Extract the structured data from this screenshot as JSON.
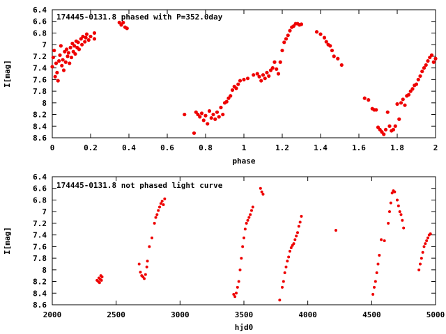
{
  "chart_data": [
    {
      "type": "scatter",
      "title": "174445-0131.8 phased with P=352.0day",
      "xlabel": "phase",
      "ylabel": "I[mag]",
      "xlim": [
        0,
        2
      ],
      "ylim": [
        8.6,
        6.4
      ],
      "y_inverted": true,
      "xticks": [
        0,
        0.2,
        0.4,
        0.6,
        0.8,
        1,
        1.2,
        1.4,
        1.6,
        1.8,
        2
      ],
      "yticks": [
        6.4,
        6.6,
        6.8,
        7,
        7.2,
        7.4,
        7.6,
        7.8,
        8,
        8.2,
        8.4,
        8.6
      ],
      "grid": false,
      "marker_color": "#ee0000",
      "series": [
        {
          "points": [
            [
              0.0,
              7.38
            ],
            [
              0.005,
              7.22
            ],
            [
              0.01,
              7.1
            ],
            [
              0.015,
              7.55
            ],
            [
              0.02,
              7.32
            ],
            [
              0.025,
              7.48
            ],
            [
              0.03,
              7.62
            ],
            [
              0.035,
              7.28
            ],
            [
              0.04,
              7.18
            ],
            [
              0.045,
              7.02
            ],
            [
              0.05,
              7.36
            ],
            [
              0.055,
              7.26
            ],
            [
              0.06,
              7.44
            ],
            [
              0.065,
              7.12
            ],
            [
              0.07,
              7.3
            ],
            [
              0.075,
              7.08
            ],
            [
              0.08,
              7.2
            ],
            [
              0.085,
              7.14
            ],
            [
              0.09,
              7.32
            ],
            [
              0.095,
              7.05
            ],
            [
              0.1,
              7.22
            ],
            [
              0.105,
              6.98
            ],
            [
              0.11,
              7.12
            ],
            [
              0.115,
              7.02
            ],
            [
              0.12,
              7.16
            ],
            [
              0.125,
              6.94
            ],
            [
              0.13,
              7.05
            ],
            [
              0.135,
              6.96
            ],
            [
              0.14,
              7.08
            ],
            [
              0.15,
              6.9
            ],
            [
              0.155,
              7.0
            ],
            [
              0.16,
              6.86
            ],
            [
              0.17,
              6.95
            ],
            [
              0.175,
              6.88
            ],
            [
              0.18,
              6.82
            ],
            [
              0.19,
              6.92
            ],
            [
              0.2,
              6.86
            ],
            [
              0.22,
              6.8
            ],
            [
              0.22,
              6.9
            ],
            [
              0.35,
              6.62
            ],
            [
              0.36,
              6.66
            ],
            [
              0.37,
              6.62
            ],
            [
              0.38,
              6.7
            ],
            [
              0.39,
              6.72
            ],
            [
              0.69,
              8.2
            ],
            [
              0.74,
              8.52
            ],
            [
              0.75,
              8.16
            ],
            [
              0.76,
              8.2
            ],
            [
              0.77,
              8.24
            ],
            [
              0.78,
              8.18
            ],
            [
              0.79,
              8.3
            ],
            [
              0.8,
              8.22
            ],
            [
              0.81,
              8.36
            ],
            [
              0.82,
              8.14
            ],
            [
              0.83,
              8.26
            ],
            [
              0.84,
              8.2
            ],
            [
              0.85,
              8.28
            ],
            [
              0.86,
              8.16
            ],
            [
              0.87,
              8.24
            ],
            [
              0.88,
              8.08
            ],
            [
              0.89,
              8.2
            ],
            [
              0.9,
              8.0
            ],
            [
              0.91,
              7.98
            ],
            [
              0.92,
              7.92
            ],
            [
              0.93,
              7.88
            ],
            [
              0.94,
              7.78
            ],
            [
              0.95,
              7.72
            ],
            [
              0.96,
              7.75
            ],
            [
              0.97,
              7.68
            ],
            [
              0.98,
              7.62
            ],
            [
              1.0,
              7.6
            ],
            [
              1.02,
              7.58
            ],
            [
              1.05,
              7.52
            ],
            [
              1.07,
              7.5
            ],
            [
              1.08,
              7.55
            ],
            [
              1.09,
              7.62
            ],
            [
              1.1,
              7.52
            ],
            [
              1.11,
              7.58
            ],
            [
              1.12,
              7.48
            ],
            [
              1.13,
              7.54
            ],
            [
              1.14,
              7.44
            ],
            [
              1.15,
              7.4
            ],
            [
              1.16,
              7.3
            ],
            [
              1.17,
              7.42
            ],
            [
              1.18,
              7.5
            ],
            [
              1.19,
              7.3
            ],
            [
              1.2,
              7.1
            ],
            [
              1.21,
              6.96
            ],
            [
              1.22,
              6.9
            ],
            [
              1.23,
              6.84
            ],
            [
              1.24,
              6.76
            ],
            [
              1.25,
              6.7
            ],
            [
              1.26,
              6.68
            ],
            [
              1.27,
              6.64
            ],
            [
              1.28,
              6.64
            ],
            [
              1.29,
              6.66
            ],
            [
              1.3,
              6.65
            ],
            [
              1.38,
              6.78
            ],
            [
              1.4,
              6.82
            ],
            [
              1.42,
              6.88
            ],
            [
              1.43,
              6.95
            ],
            [
              1.44,
              7.0
            ],
            [
              1.45,
              7.02
            ],
            [
              1.46,
              7.1
            ],
            [
              1.47,
              7.2
            ],
            [
              1.49,
              7.24
            ],
            [
              1.51,
              7.35
            ],
            [
              1.63,
              7.92
            ],
            [
              1.65,
              7.95
            ],
            [
              1.67,
              8.1
            ],
            [
              1.68,
              8.12
            ],
            [
              1.69,
              8.12
            ],
            [
              1.7,
              8.42
            ],
            [
              1.71,
              8.46
            ],
            [
              1.72,
              8.5
            ],
            [
              1.73,
              8.54
            ],
            [
              1.74,
              8.46
            ],
            [
              1.75,
              8.16
            ],
            [
              1.76,
              8.4
            ],
            [
              1.77,
              8.48
            ],
            [
              1.78,
              8.46
            ],
            [
              1.79,
              8.4
            ],
            [
              1.8,
              8.02
            ],
            [
              1.81,
              8.28
            ],
            [
              1.82,
              8.0
            ],
            [
              1.83,
              7.94
            ],
            [
              1.84,
              8.04
            ],
            [
              1.85,
              7.88
            ],
            [
              1.86,
              7.86
            ],
            [
              1.87,
              7.8
            ],
            [
              1.88,
              7.76
            ],
            [
              1.89,
              7.7
            ],
            [
              1.9,
              7.68
            ],
            [
              1.91,
              7.6
            ],
            [
              1.92,
              7.54
            ],
            [
              1.93,
              7.46
            ],
            [
              1.94,
              7.4
            ],
            [
              1.95,
              7.35
            ],
            [
              1.96,
              7.28
            ],
            [
              1.97,
              7.22
            ],
            [
              1.98,
              7.18
            ],
            [
              1.99,
              7.3
            ],
            [
              2.0,
              7.24
            ]
          ]
        }
      ]
    },
    {
      "type": "scatter",
      "title": "174445-0131.8 not phased light curve",
      "xlabel": "hjd0",
      "ylabel": "I[mag]",
      "xlim": [
        2000,
        5000
      ],
      "ylim": [
        8.6,
        6.4
      ],
      "y_inverted": true,
      "xticks": [
        2000,
        2500,
        3000,
        3500,
        4000,
        4500,
        5000
      ],
      "yticks": [
        6.4,
        6.6,
        6.8,
        7,
        7.2,
        7.4,
        7.6,
        7.8,
        8,
        8.2,
        8.4,
        8.6
      ],
      "grid": false,
      "marker_color": "#ee0000",
      "series": [
        {
          "points": [
            [
              2350,
              8.18
            ],
            [
              2360,
              8.2
            ],
            [
              2365,
              8.14
            ],
            [
              2370,
              8.22
            ],
            [
              2375,
              8.16
            ],
            [
              2380,
              8.1
            ],
            [
              2385,
              8.18
            ],
            [
              2390,
              8.12
            ],
            [
              2680,
              7.9
            ],
            [
              2690,
              8.04
            ],
            [
              2700,
              8.1
            ],
            [
              2710,
              8.12
            ],
            [
              2720,
              8.15
            ],
            [
              2730,
              8.08
            ],
            [
              2740,
              7.95
            ],
            [
              2745,
              7.85
            ],
            [
              2760,
              7.6
            ],
            [
              2780,
              7.45
            ],
            [
              2800,
              7.2
            ],
            [
              2810,
              7.1
            ],
            [
              2820,
              7.05
            ],
            [
              2830,
              6.98
            ],
            [
              2840,
              6.92
            ],
            [
              2850,
              6.86
            ],
            [
              2860,
              6.82
            ],
            [
              2870,
              6.88
            ],
            [
              2880,
              6.78
            ],
            [
              3420,
              8.42
            ],
            [
              3430,
              8.46
            ],
            [
              3440,
              8.4
            ],
            [
              3450,
              8.3
            ],
            [
              3460,
              8.2
            ],
            [
              3470,
              8.0
            ],
            [
              3480,
              7.8
            ],
            [
              3490,
              7.6
            ],
            [
              3500,
              7.45
            ],
            [
              3510,
              7.3
            ],
            [
              3520,
              7.2
            ],
            [
              3530,
              7.15
            ],
            [
              3540,
              7.1
            ],
            [
              3550,
              7.05
            ],
            [
              3560,
              6.98
            ],
            [
              3570,
              6.92
            ],
            [
              3630,
              6.6
            ],
            [
              3640,
              6.66
            ],
            [
              3650,
              6.7
            ],
            [
              3780,
              8.52
            ],
            [
              3800,
              8.3
            ],
            [
              3810,
              8.2
            ],
            [
              3820,
              8.05
            ],
            [
              3830,
              7.95
            ],
            [
              3840,
              7.85
            ],
            [
              3850,
              7.78
            ],
            [
              3860,
              7.68
            ],
            [
              3870,
              7.62
            ],
            [
              3880,
              7.58
            ],
            [
              3890,
              7.55
            ],
            [
              3900,
              7.48
            ],
            [
              3910,
              7.42
            ],
            [
              3920,
              7.36
            ],
            [
              3930,
              7.25
            ],
            [
              3940,
              7.18
            ],
            [
              3950,
              7.08
            ],
            [
              4220,
              7.32
            ],
            [
              4510,
              8.42
            ],
            [
              4520,
              8.3
            ],
            [
              4530,
              8.2
            ],
            [
              4540,
              8.05
            ],
            [
              4550,
              7.9
            ],
            [
              4560,
              7.75
            ],
            [
              4575,
              7.48
            ],
            [
              4600,
              7.5
            ],
            [
              4630,
              7.2
            ],
            [
              4640,
              7.0
            ],
            [
              4650,
              6.85
            ],
            [
              4660,
              6.68
            ],
            [
              4670,
              6.64
            ],
            [
              4680,
              6.66
            ],
            [
              4700,
              6.8
            ],
            [
              4710,
              6.9
            ],
            [
              4720,
              7.0
            ],
            [
              4730,
              7.05
            ],
            [
              4740,
              7.15
            ],
            [
              4750,
              7.28
            ],
            [
              4870,
              8.0
            ],
            [
              4880,
              7.9
            ],
            [
              4890,
              7.8
            ],
            [
              4900,
              7.7
            ],
            [
              4910,
              7.6
            ],
            [
              4920,
              7.55
            ],
            [
              4930,
              7.5
            ],
            [
              4940,
              7.45
            ],
            [
              4950,
              7.4
            ],
            [
              4960,
              7.38
            ]
          ]
        }
      ]
    }
  ]
}
